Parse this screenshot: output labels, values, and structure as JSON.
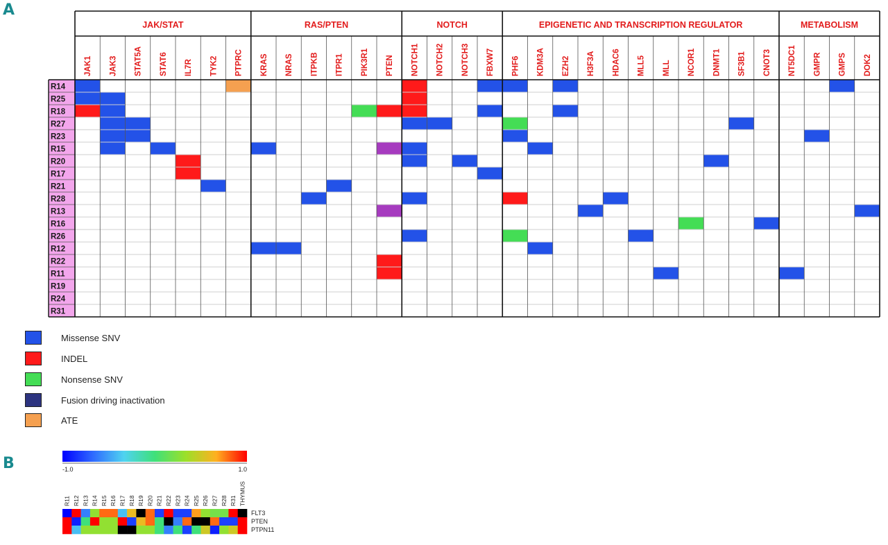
{
  "panel_a_label": "A",
  "panel_b_label": "B",
  "colors": {
    "missense": "#2352e8",
    "indel": "#ff1a1a",
    "nonsense": "#44dd55",
    "fusion": "#2d3480",
    "ate": "#f5a050",
    "purple": "#a63bbf",
    "header_text": "#e21b1b",
    "row_label_bg": "#f3a6ec",
    "grid_line": "#cfcfcf"
  },
  "groups": [
    {
      "label": "JAK/STAT",
      "span": 7
    },
    {
      "label": "RAS/PTEN",
      "span": 6
    },
    {
      "label": "NOTCH",
      "span": 4
    },
    {
      "label": "EPIGENETIC AND TRANSCRIPTION REGULATOR",
      "span": 11
    },
    {
      "label": "METABOLISM",
      "span": 4
    }
  ],
  "genes": [
    "JAK1",
    "JAK3",
    "STAT5A",
    "STAT6",
    "IL7R",
    "TYK2",
    "PTPRC",
    "KRAS",
    "NRAS",
    "ITPKB",
    "ITPR1",
    "PIK3R1",
    "PTEN",
    "NOTCH1",
    "NOTCH2",
    "NOTCH3",
    "FBXW7",
    "PHF6",
    "KDM3A",
    "EZH2",
    "H3F3A",
    "HDAC6",
    "MLL5",
    "MLL",
    "NCOR1",
    "DNMT1",
    "SF3B1",
    "CNOT3",
    "NT5DC1",
    "GMPR",
    "GMPS",
    "DOK2"
  ],
  "samples": [
    "R14",
    "R25",
    "R18",
    "R27",
    "R23",
    "R15",
    "R20",
    "R17",
    "R21",
    "R28",
    "R13",
    "R16",
    "R26",
    "R12",
    "R22",
    "R11",
    "R19",
    "R24",
    "R31"
  ],
  "mutations": [
    [
      "R14",
      "JAK1",
      "missense"
    ],
    [
      "R14",
      "PTPRC",
      "ate"
    ],
    [
      "R14",
      "NOTCH1",
      "indel"
    ],
    [
      "R14",
      "FBXW7",
      "missense"
    ],
    [
      "R14",
      "PHF6",
      "missense"
    ],
    [
      "R14",
      "EZH2",
      "missense"
    ],
    [
      "R14",
      "GMPS",
      "missense"
    ],
    [
      "R25",
      "JAK1",
      "missense"
    ],
    [
      "R25",
      "JAK3",
      "missense"
    ],
    [
      "R25",
      "NOTCH1",
      "indel"
    ],
    [
      "R18",
      "JAK1",
      "indel"
    ],
    [
      "R18",
      "JAK3",
      "missense"
    ],
    [
      "R18",
      "PIK3R1",
      "nonsense"
    ],
    [
      "R18",
      "PTEN",
      "indel"
    ],
    [
      "R18",
      "NOTCH1",
      "indel"
    ],
    [
      "R18",
      "FBXW7",
      "missense"
    ],
    [
      "R18",
      "EZH2",
      "missense"
    ],
    [
      "R27",
      "JAK3",
      "missense"
    ],
    [
      "R27",
      "STAT5A",
      "missense"
    ],
    [
      "R27",
      "NOTCH1",
      "missense"
    ],
    [
      "R27",
      "NOTCH2",
      "missense"
    ],
    [
      "R27",
      "PHF6",
      "nonsense"
    ],
    [
      "R27",
      "SF3B1",
      "missense"
    ],
    [
      "R23",
      "JAK3",
      "missense"
    ],
    [
      "R23",
      "STAT5A",
      "missense"
    ],
    [
      "R23",
      "PHF6",
      "missense"
    ],
    [
      "R23",
      "GMPR",
      "missense"
    ],
    [
      "R15",
      "JAK3",
      "missense"
    ],
    [
      "R15",
      "STAT6",
      "missense"
    ],
    [
      "R15",
      "KRAS",
      "missense"
    ],
    [
      "R15",
      "PTEN",
      "purple"
    ],
    [
      "R15",
      "NOTCH1",
      "missense"
    ],
    [
      "R15",
      "KDM3A",
      "missense"
    ],
    [
      "R20",
      "IL7R",
      "indel"
    ],
    [
      "R20",
      "NOTCH1",
      "missense"
    ],
    [
      "R20",
      "NOTCH3",
      "missense"
    ],
    [
      "R20",
      "DNMT1",
      "missense"
    ],
    [
      "R17",
      "IL7R",
      "indel"
    ],
    [
      "R17",
      "FBXW7",
      "missense"
    ],
    [
      "R21",
      "TYK2",
      "missense"
    ],
    [
      "R21",
      "ITPR1",
      "missense"
    ],
    [
      "R28",
      "ITPKB",
      "missense"
    ],
    [
      "R28",
      "NOTCH1",
      "missense"
    ],
    [
      "R28",
      "PHF6",
      "indel"
    ],
    [
      "R28",
      "HDAC6",
      "missense"
    ],
    [
      "R13",
      "PTEN",
      "purple"
    ],
    [
      "R13",
      "H3F3A",
      "missense"
    ],
    [
      "R13",
      "DOK2",
      "missense"
    ],
    [
      "R16",
      "NCOR1",
      "nonsense"
    ],
    [
      "R16",
      "CNOT3",
      "missense"
    ],
    [
      "R26",
      "NOTCH1",
      "missense"
    ],
    [
      "R26",
      "PHF6",
      "nonsense"
    ],
    [
      "R26",
      "MLL5",
      "missense"
    ],
    [
      "R12",
      "KRAS",
      "missense"
    ],
    [
      "R12",
      "NRAS",
      "missense"
    ],
    [
      "R12",
      "KDM3A",
      "missense"
    ],
    [
      "R22",
      "PTEN",
      "indel"
    ],
    [
      "R11",
      "PTEN",
      "indel"
    ],
    [
      "R11",
      "MLL",
      "missense"
    ],
    [
      "R11",
      "NT5DC1",
      "missense"
    ]
  ],
  "legend": [
    {
      "key": "missense",
      "label": "Missense SNV"
    },
    {
      "key": "indel",
      "label": "INDEL"
    },
    {
      "key": "nonsense",
      "label": "Nonsense SNV"
    },
    {
      "key": "fusion",
      "label": "Fusion driving inactivation"
    },
    {
      "key": "ate",
      "label": "ATE"
    }
  ],
  "colorbar": {
    "min_label": "-1.0",
    "max_label": "1.0",
    "stops": [
      "#0000ff",
      "#2f6bff",
      "#4fd3f0",
      "#3fe07a",
      "#9be02a",
      "#ffb020",
      "#ff0000"
    ]
  },
  "heatmap_columns": [
    "R11",
    "R12",
    "R13",
    "R14",
    "R15",
    "R16",
    "R17",
    "R18",
    "R19",
    "R20",
    "R21",
    "R22",
    "R23",
    "R24",
    "R25",
    "R26",
    "R27",
    "R28",
    "R31",
    "THYMUS"
  ],
  "heatmap_rows": [
    "FLT3",
    "PTEN",
    "PTPN11"
  ],
  "heatmap_values": [
    [
      -1.0,
      1.0,
      -0.6,
      0.3,
      0.8,
      0.8,
      -0.4,
      0.6,
      null,
      0.8,
      -0.8,
      1.0,
      -0.8,
      -0.8,
      0.7,
      0.3,
      0.2,
      0.2,
      1.0,
      null
    ],
    [
      1.0,
      -0.9,
      0.0,
      1.0,
      0.3,
      0.3,
      1.0,
      -0.8,
      0.6,
      0.8,
      0.0,
      null,
      -0.6,
      0.8,
      null,
      null,
      0.8,
      -0.8,
      -0.8,
      1.0
    ],
    [
      1.0,
      -0.4,
      0.3,
      0.3,
      0.3,
      0.3,
      null,
      null,
      0.3,
      0.3,
      0.0,
      -0.6,
      0.0,
      -0.8,
      0.0,
      0.5,
      -0.9,
      0.3,
      0.5,
      1.0
    ]
  ]
}
